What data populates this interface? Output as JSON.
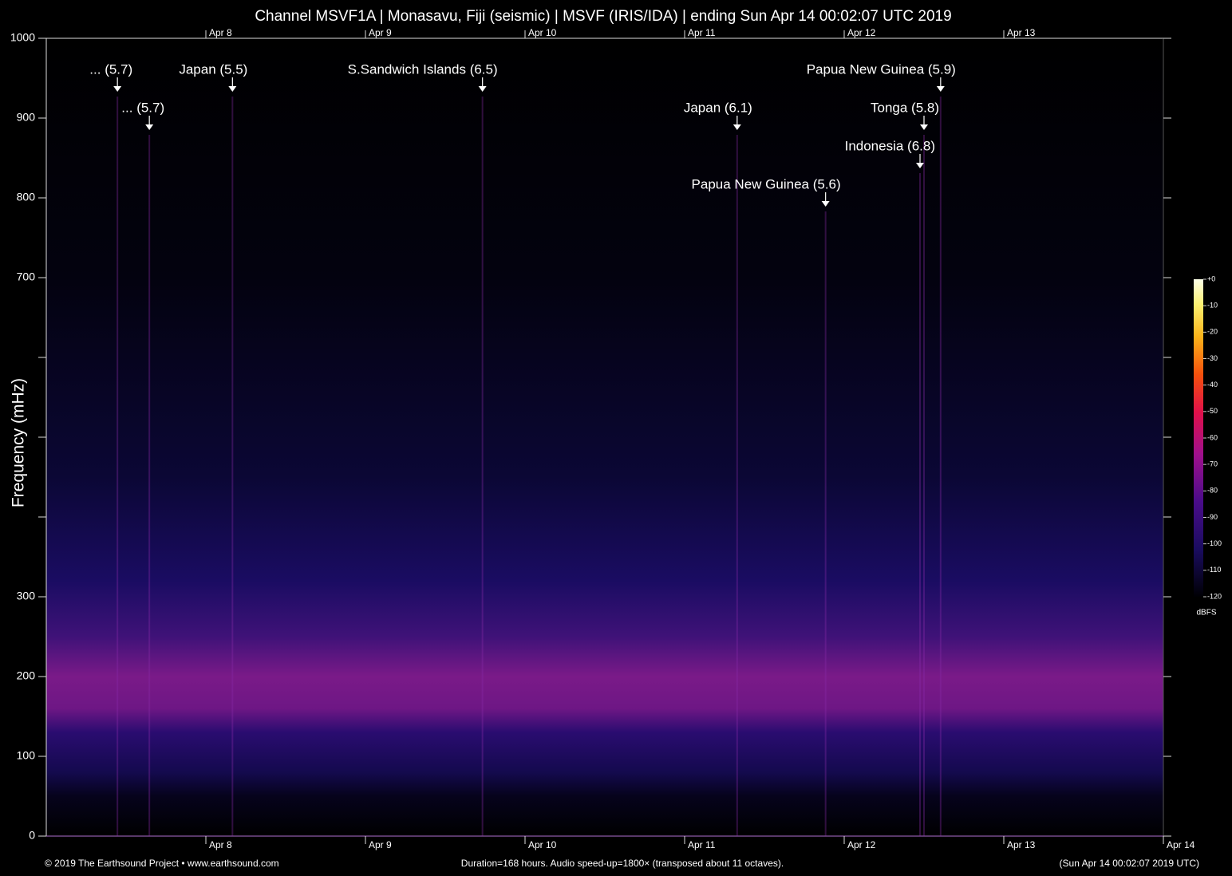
{
  "chart_data": {
    "type": "spectrogram",
    "title": "Channel MSVF1A | Monasavu, Fiji (seismic) | MSVF (IRIS/IDA) | ending Sun Apr 14 00:02:07 UTC 2019",
    "y_label": "Frequency (mHz)",
    "xlim": [
      0,
      168
    ],
    "xticks": [
      {
        "value": 24,
        "label": "Apr 8"
      },
      {
        "value": 48,
        "label": "Apr 9"
      },
      {
        "value": 72,
        "label": "Apr 10"
      },
      {
        "value": 96,
        "label": "Apr 11"
      },
      {
        "value": 120,
        "label": "Apr 12"
      },
      {
        "value": 144,
        "label": "Apr 13"
      },
      {
        "value": 168,
        "label": "Apr 14"
      }
    ],
    "ylim": [
      0,
      1000
    ],
    "yticks": [
      0,
      100,
      200,
      300,
      700,
      800,
      900,
      1000
    ],
    "yminor": [
      400,
      500,
      600
    ],
    "annotations": [
      {
        "text": "... (5.7)",
        "x": 10.7,
        "y": 933
      },
      {
        "text": "... (5.7)",
        "x": 15.5,
        "y": 885
      },
      {
        "text": "Japan (5.5)",
        "x": 28.0,
        "y": 933
      },
      {
        "text": "S.Sandwich Islands (6.5)",
        "x": 65.6,
        "y": 933
      },
      {
        "text": "Japan (6.1)",
        "x": 103.9,
        "y": 885
      },
      {
        "text": "Papua New Guinea (5.9)",
        "x": 134.5,
        "y": 933
      },
      {
        "text": "Tonga (5.8)",
        "x": 132.0,
        "y": 885
      },
      {
        "text": "Indonesia (6.8)",
        "x": 131.4,
        "y": 837
      },
      {
        "text": "Papua New Guinea (5.6)",
        "x": 117.2,
        "y": 789
      }
    ],
    "colorbar": {
      "label": "dBFS",
      "lim": [
        -120,
        0
      ],
      "ticks": [
        {
          "value": 0,
          "label": "+0"
        },
        -10,
        -20,
        -30,
        -40,
        -50,
        -60,
        -70,
        -80,
        -90,
        -100,
        -110,
        -120
      ]
    },
    "footer": {
      "left": "© 2019 The Earthsound Project • www.earthsound.com",
      "center": "Duration=168 hours. Audio speed-up=1800× (transposed about 11 octaves).",
      "right": "(Sun Apr 14 00:02:07 2019 UTC)"
    }
  }
}
